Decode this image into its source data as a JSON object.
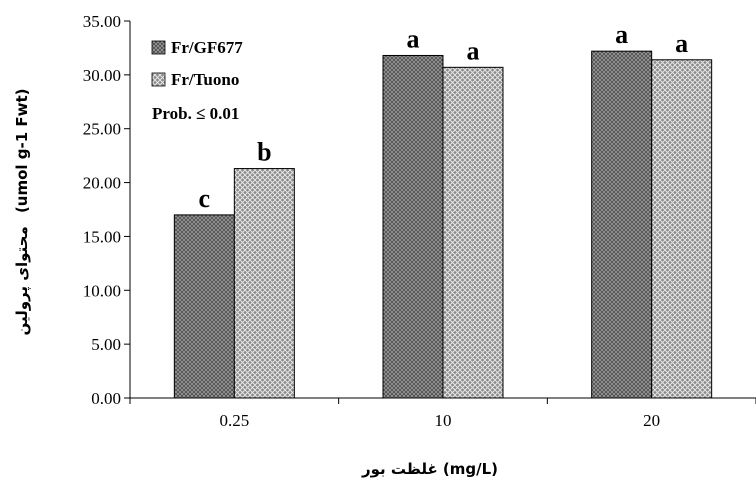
{
  "chart_data": {
    "type": "bar",
    "categories": [
      "0.25",
      "10",
      "20"
    ],
    "series": [
      {
        "name": "Fr/GF677",
        "values": [
          17.0,
          31.8,
          32.2
        ],
        "letters": [
          "c",
          "a",
          "a"
        ],
        "color": "#555555"
      },
      {
        "name": "Fr/Tuono",
        "values": [
          21.3,
          30.7,
          31.4
        ],
        "letters": [
          "b",
          "a",
          "a"
        ],
        "color": "#888888"
      }
    ],
    "ylim": [
      0,
      35
    ],
    "y_ticks": [
      "0.00",
      "5.00",
      "10.00",
      "15.00",
      "20.00",
      "25.00",
      "30.00",
      "35.00"
    ],
    "ylabel_persian": "محتوای پرولین",
    "ylabel_unit": "(umol g-1 Fwt)",
    "xlabel": "غلظت بور (mg/L)",
    "annotation": "Prob. ≤ 0.01",
    "legend_position": "top-left",
    "grid": false
  }
}
